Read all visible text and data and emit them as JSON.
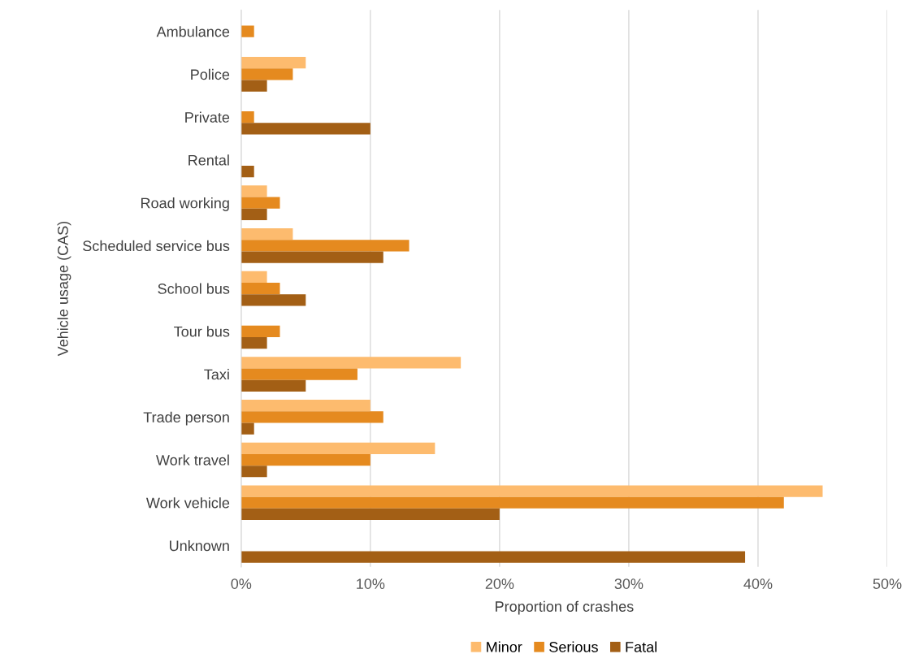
{
  "chart_data": {
    "type": "bar",
    "orientation": "horizontal",
    "xlabel": "Proportion of crashes",
    "ylabel": "Vehicle usage (CAS)",
    "categories": [
      "Ambulance",
      "Police",
      "Private",
      "Rental",
      "Road working",
      "Scheduled service bus",
      "School bus",
      "Tour bus",
      "Taxi",
      "Trade person",
      "Work travel",
      "Work vehicle",
      "Unknown"
    ],
    "series": [
      {
        "name": "Minor",
        "color": "#fdbb6e",
        "values": [
          null,
          5,
          null,
          null,
          2,
          4,
          2,
          null,
          17,
          10,
          15,
          45,
          null
        ]
      },
      {
        "name": "Serious",
        "color": "#e58a1f",
        "values": [
          1,
          4,
          1,
          null,
          3,
          13,
          3,
          3,
          9,
          11,
          10,
          42,
          null
        ]
      },
      {
        "name": "Fatal",
        "color": "#a35f15",
        "values": [
          null,
          2,
          10,
          1,
          2,
          11,
          5,
          2,
          5,
          1,
          2,
          20,
          39
        ]
      }
    ],
    "xlim": [
      0,
      50
    ],
    "xticks": [
      {
        "value": 0,
        "label": "0%"
      },
      {
        "value": 10,
        "label": "10%"
      },
      {
        "value": 20,
        "label": "20%"
      },
      {
        "value": 30,
        "label": "30%"
      },
      {
        "value": 40,
        "label": "40%"
      },
      {
        "value": 50,
        "label": "50%"
      }
    ],
    "grid": "x",
    "legend": "bottom"
  }
}
